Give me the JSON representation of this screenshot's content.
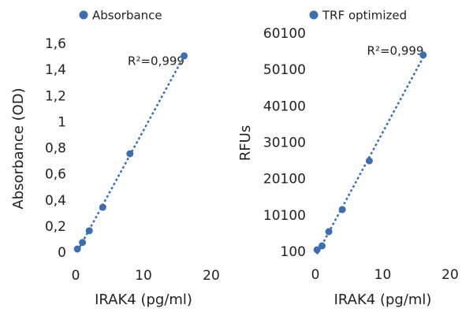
{
  "chart_data": [
    {
      "type": "scatter",
      "legend": "top",
      "annotation": "R²=0,999",
      "x_label": "IRAK4 (pg/ml)",
      "y_label": "Absorbance (OD)",
      "series": [
        {
          "name": "Absorbance",
          "color": "#3d6fb0",
          "x": [
            0.25,
            1,
            2,
            4,
            8,
            16
          ],
          "values": [
            0.03,
            0.08,
            0.17,
            0.35,
            0.76,
            1.51
          ]
        }
      ],
      "xlim": [
        0,
        20
      ],
      "xticks": [
        0,
        10,
        20
      ],
      "ylim": [
        0,
        1.6
      ],
      "yticks": [
        0,
        {
          "value": 0.2,
          "label": "0,2"
        },
        {
          "value": 0.4,
          "label": "0,4"
        },
        {
          "value": 0.6,
          "label": "0,6"
        },
        {
          "value": 0.8,
          "label": "0,8"
        },
        1,
        {
          "value": 1.2,
          "label": "1,2"
        },
        {
          "value": 1.4,
          "label": "1,4"
        },
        {
          "value": 1.6,
          "label": "1,6"
        }
      ]
    },
    {
      "type": "scatter",
      "legend": "top",
      "annotation": "R²=0,999",
      "x_label": "IRAK4 (pg/ml)",
      "y_label": "RFUs",
      "series": [
        {
          "name": "TRF optimized",
          "color": "#3d6fb0",
          "x": [
            0.25,
            1,
            2,
            4,
            8,
            16
          ],
          "values": [
            750,
            1830,
            5730,
            11800,
            25200,
            54300
          ]
        }
      ],
      "xlim": [
        0,
        20
      ],
      "xticks": [
        0,
        10,
        20
      ],
      "ylim": [
        100,
        60100
      ],
      "yticks": [
        100,
        10100,
        20100,
        30100,
        40100,
        50100,
        60100
      ]
    }
  ]
}
